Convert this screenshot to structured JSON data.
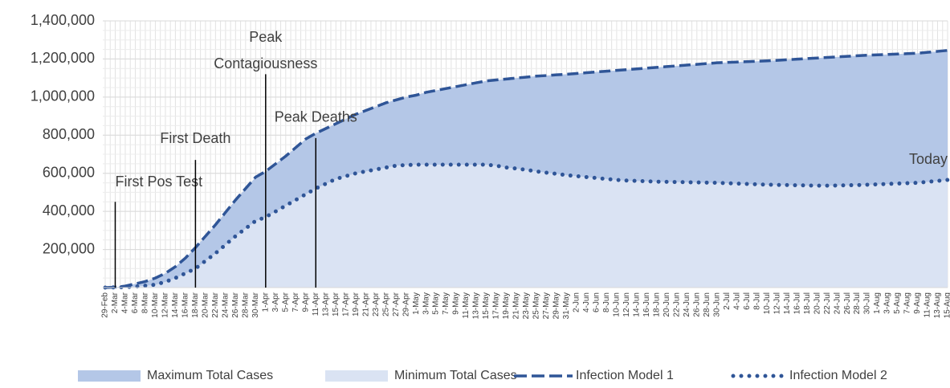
{
  "chart_data": {
    "type": "line",
    "categories": [
      "29-Feb",
      "2-Mar",
      "4-Mar",
      "6-Mar",
      "8-Mar",
      "10-Mar",
      "12-Mar",
      "14-Mar",
      "16-Mar",
      "18-Mar",
      "20-Mar",
      "22-Mar",
      "24-Mar",
      "26-Mar",
      "28-Mar",
      "30-Mar",
      "1-Apr",
      "3-Apr",
      "5-Apr",
      "7-Apr",
      "9-Apr",
      "11-Apr",
      "13-Apr",
      "15-Apr",
      "17-Apr",
      "19-Apr",
      "21-Apr",
      "23-Apr",
      "25-Apr",
      "27-Apr",
      "29-Apr",
      "1-May",
      "3-May",
      "5-May",
      "7-May",
      "9-May",
      "11-May",
      "13-May",
      "15-May",
      "17-May",
      "19-May",
      "21-May",
      "23-May",
      "25-May",
      "27-May",
      "29-May",
      "31-May",
      "2-Jun",
      "4-Jun",
      "6-Jun",
      "8-Jun",
      "10-Jun",
      "12-Jun",
      "14-Jun",
      "16-Jun",
      "18-Jun",
      "20-Jun",
      "22-Jun",
      "24-Jun",
      "26-Jun",
      "28-Jun",
      "30-Jun",
      "2-Jul",
      "4-Jul",
      "6-Jul",
      "8-Jul",
      "10-Jul",
      "12-Jul",
      "14-Jul",
      "16-Jul",
      "18-Jul",
      "20-Jul",
      "22-Jul",
      "24-Jul",
      "26-Jul",
      "28-Jul",
      "30-Jul",
      "1-Aug",
      "3-Aug",
      "5-Aug",
      "7-Aug",
      "9-Aug",
      "11-Aug",
      "13-Aug",
      "15-Aug"
    ],
    "series": [
      {
        "name": "Maximum Total Cases",
        "kind": "area",
        "color": "#b4c7e7",
        "values": [
          0,
          2000,
          8000,
          20000,
          32000,
          50000,
          75000,
          110000,
          155000,
          210000,
          270000,
          330000,
          395000,
          460000,
          520000,
          580000,
          610000,
          650000,
          690000,
          735000,
          780000,
          810000,
          835000,
          860000,
          885000,
          910000,
          930000,
          950000,
          970000,
          985000,
          1000000,
          1010000,
          1025000,
          1035000,
          1045000,
          1055000,
          1065000,
          1075000,
          1085000,
          1090000,
          1095000,
          1100000,
          1105000,
          1110000,
          1113000,
          1117000,
          1120000,
          1124000,
          1128000,
          1132000,
          1136000,
          1140000,
          1144000,
          1148000,
          1152000,
          1156000,
          1160000,
          1164000,
          1168000,
          1172000,
          1176000,
          1180000,
          1182000,
          1184000,
          1186000,
          1188000,
          1190000,
          1193000,
          1196000,
          1199000,
          1202000,
          1205000,
          1208000,
          1211000,
          1214000,
          1217000,
          1220000,
          1222000,
          1224000,
          1226000,
          1228000,
          1230000,
          1235000,
          1240000,
          1245000
        ]
      },
      {
        "name": "Minimum Total Cases",
        "kind": "area",
        "color": "#dae3f3",
        "values": [
          0,
          1000,
          2000,
          5000,
          10000,
          15000,
          30000,
          50000,
          75000,
          100000,
          140000,
          180000,
          225000,
          270000,
          310000,
          350000,
          370000,
          400000,
          430000,
          460000,
          490000,
          520000,
          545000,
          570000,
          585000,
          600000,
          610000,
          620000,
          630000,
          640000,
          643000,
          645000,
          645000,
          645000,
          645000,
          645000,
          645000,
          645000,
          645000,
          640000,
          630000,
          625000,
          618000,
          610000,
          603000,
          597000,
          590000,
          585000,
          580000,
          575000,
          570000,
          565000,
          562000,
          560000,
          558000,
          556000,
          555000,
          554000,
          553000,
          552000,
          551000,
          550000,
          548000,
          546000,
          544000,
          542000,
          540000,
          539000,
          538000,
          537000,
          536000,
          535000,
          535000,
          536000,
          537000,
          538000,
          540000,
          542000,
          544000,
          546000,
          548000,
          550000,
          555000,
          560000,
          565000
        ]
      },
      {
        "name": "Infection Model 1",
        "kind": "line",
        "style": "dashed",
        "color": "#2f5597",
        "values": [
          0,
          2000,
          8000,
          20000,
          32000,
          50000,
          75000,
          110000,
          155000,
          210000,
          270000,
          330000,
          395000,
          460000,
          520000,
          580000,
          610000,
          650000,
          690000,
          735000,
          780000,
          810000,
          835000,
          860000,
          885000,
          910000,
          930000,
          950000,
          970000,
          985000,
          1000000,
          1010000,
          1025000,
          1035000,
          1045000,
          1055000,
          1065000,
          1075000,
          1085000,
          1090000,
          1095000,
          1100000,
          1105000,
          1110000,
          1113000,
          1117000,
          1120000,
          1124000,
          1128000,
          1132000,
          1136000,
          1140000,
          1144000,
          1148000,
          1152000,
          1156000,
          1160000,
          1164000,
          1168000,
          1172000,
          1176000,
          1180000,
          1182000,
          1184000,
          1186000,
          1188000,
          1190000,
          1193000,
          1196000,
          1199000,
          1202000,
          1205000,
          1208000,
          1211000,
          1214000,
          1217000,
          1220000,
          1222000,
          1224000,
          1226000,
          1228000,
          1230000,
          1235000,
          1240000,
          1245000
        ]
      },
      {
        "name": "Infection Model 2",
        "kind": "line",
        "style": "dotted",
        "color": "#2f5597",
        "values": [
          0,
          1000,
          2000,
          5000,
          10000,
          15000,
          30000,
          50000,
          75000,
          100000,
          140000,
          180000,
          225000,
          270000,
          310000,
          350000,
          370000,
          400000,
          430000,
          460000,
          490000,
          520000,
          545000,
          570000,
          585000,
          600000,
          610000,
          620000,
          630000,
          640000,
          643000,
          645000,
          645000,
          645000,
          645000,
          645000,
          645000,
          645000,
          645000,
          640000,
          630000,
          625000,
          618000,
          610000,
          603000,
          597000,
          590000,
          585000,
          580000,
          575000,
          570000,
          565000,
          562000,
          560000,
          558000,
          556000,
          555000,
          554000,
          553000,
          552000,
          551000,
          550000,
          548000,
          546000,
          544000,
          542000,
          540000,
          539000,
          538000,
          537000,
          536000,
          535000,
          535000,
          536000,
          537000,
          538000,
          540000,
          542000,
          544000,
          546000,
          548000,
          550000,
          555000,
          560000,
          565000
        ]
      }
    ],
    "ylim": [
      0,
      1400000
    ],
    "yticks": [
      {
        "value": 200000,
        "label": "200,000"
      },
      {
        "value": 400000,
        "label": "400,000"
      },
      {
        "value": 600000,
        "label": "600,000"
      },
      {
        "value": 800000,
        "label": "800,000"
      },
      {
        "value": 1000000,
        "label": "1,000,000"
      },
      {
        "value": 1200000,
        "label": "1,200,000"
      },
      {
        "value": 1400000,
        "label": "1,400,000"
      }
    ],
    "grid": true,
    "legend": "bottom",
    "annotations": [
      {
        "lines": [
          "First Pos Test"
        ],
        "category": "2-Mar",
        "y": 450000,
        "line": true
      },
      {
        "lines": [
          "First Death"
        ],
        "category": "18-Mar",
        "y": 670000,
        "line": true
      },
      {
        "lines": [
          "Peak",
          "Contagiousness"
        ],
        "category": "1-Apr",
        "y": 1120000,
        "line": true
      },
      {
        "lines": [
          "Peak Deaths"
        ],
        "category": "11-Apr",
        "y": 785000,
        "line": true
      },
      {
        "lines": [
          "Today"
        ],
        "category": "15-Aug",
        "y": 670000,
        "line": false
      }
    ]
  }
}
